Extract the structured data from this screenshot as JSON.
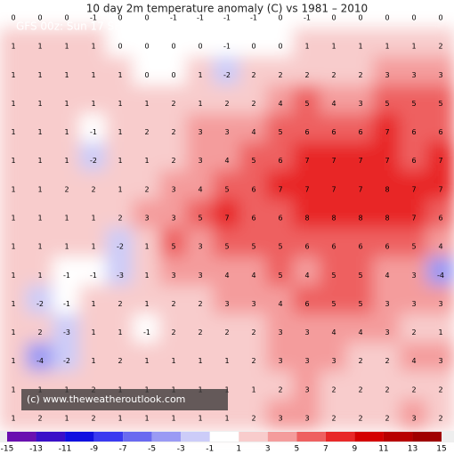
{
  "header": {
    "title": "10 day 2m temperature anomaly (C) vs 1981 – 2010",
    "subtitle": "GFS 00z: Sun 17 SEP"
  },
  "credit": "(c) www.theweatheroutlook.com",
  "grid": [
    [
      0,
      0,
      0,
      -1,
      0,
      0,
      -1,
      -1,
      -1,
      -1,
      0,
      -1,
      0,
      0,
      0,
      0,
      0
    ],
    [
      1,
      1,
      1,
      1,
      0,
      0,
      0,
      0,
      -1,
      0,
      0,
      1,
      1,
      1,
      1,
      1,
      2
    ],
    [
      1,
      1,
      1,
      1,
      1,
      0,
      0,
      1,
      -2,
      2,
      2,
      2,
      2,
      2,
      3,
      3,
      3
    ],
    [
      1,
      1,
      1,
      1,
      1,
      1,
      2,
      1,
      2,
      2,
      4,
      5,
      4,
      3,
      5,
      5,
      5
    ],
    [
      1,
      1,
      1,
      -1,
      1,
      2,
      2,
      3,
      3,
      4,
      5,
      6,
      6,
      6,
      7,
      6,
      6
    ],
    [
      1,
      1,
      1,
      -2,
      1,
      1,
      2,
      3,
      4,
      5,
      6,
      7,
      7,
      7,
      7,
      6,
      7
    ],
    [
      1,
      1,
      2,
      2,
      1,
      2,
      3,
      4,
      5,
      6,
      7,
      7,
      7,
      7,
      8,
      7,
      7
    ],
    [
      1,
      1,
      1,
      1,
      2,
      3,
      3,
      5,
      7,
      6,
      6,
      8,
      8,
      8,
      8,
      7,
      6
    ],
    [
      1,
      1,
      1,
      1,
      -2,
      1,
      5,
      3,
      5,
      5,
      5,
      6,
      6,
      6,
      6,
      5,
      4
    ],
    [
      1,
      1,
      -1,
      -1,
      -3,
      1,
      3,
      3,
      4,
      4,
      5,
      4,
      5,
      5,
      4,
      3,
      -4
    ],
    [
      1,
      -2,
      -1,
      1,
      2,
      1,
      2,
      2,
      3,
      3,
      4,
      6,
      5,
      5,
      3,
      3,
      3
    ],
    [
      1,
      2,
      -3,
      1,
      1,
      -1,
      2,
      2,
      2,
      2,
      3,
      3,
      4,
      4,
      3,
      2,
      1
    ],
    [
      1,
      -4,
      -2,
      1,
      2,
      1,
      1,
      1,
      1,
      2,
      3,
      3,
      3,
      2,
      2,
      4,
      3
    ],
    [
      1,
      1,
      1,
      2,
      1,
      1,
      1,
      1,
      1,
      1,
      2,
      3,
      2,
      2,
      2,
      2,
      2
    ],
    [
      1,
      2,
      1,
      2,
      1,
      1,
      1,
      1,
      1,
      2,
      3,
      3,
      2,
      2,
      2,
      3,
      2
    ]
  ],
  "colorbar": {
    "ticks": [
      -15,
      -13,
      -11,
      -9,
      -7,
      -5,
      -3,
      -1,
      1,
      3,
      5,
      7,
      9,
      11,
      13,
      15
    ],
    "colors": [
      "#6a10b0",
      "#3a10c8",
      "#1010e0",
      "#3a3af0",
      "#6a6af0",
      "#9a9af4",
      "#ccccf8",
      "#ffffff",
      "#f8cccc",
      "#f49c9c",
      "#ee6060",
      "#e82828",
      "#d40000",
      "#b80000",
      "#a00000"
    ]
  }
}
